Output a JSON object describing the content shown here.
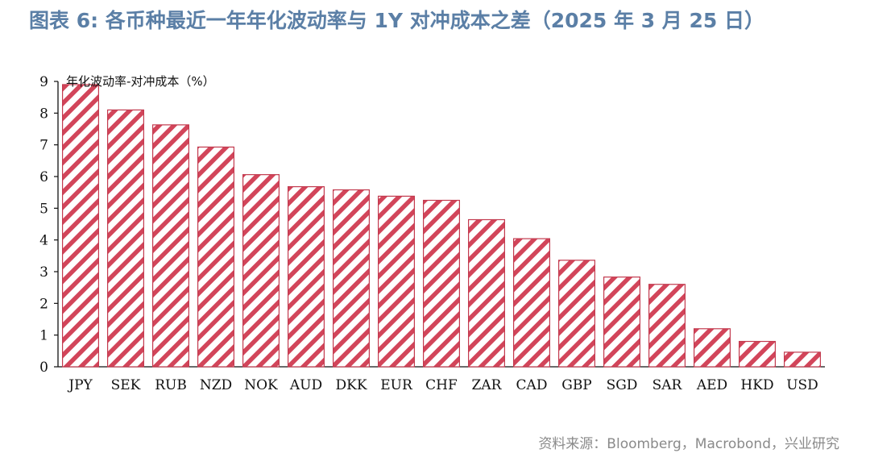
{
  "title": "图表 6: 各币种最近一年年化波动率与 1Y 对冲成本之差（2025 年 3 月 25 日）",
  "source": "资料来源：Bloomberg，Macrobond，兴业研究",
  "colors": {
    "bar_stripe": "#d2455a",
    "bar_border": "#c23a4e",
    "title": "#5b7fa6",
    "source": "#8a8a8a"
  },
  "chart_data": {
    "type": "bar",
    "title": "图表 6: 各币种最近一年年化波动率与 1Y 对冲成本之差（2025 年 3 月 25 日）",
    "ylabel": "年化波动率-对冲成本（%）",
    "xlabel": "",
    "ylim": [
      0,
      9
    ],
    "yticks": [
      "0",
      "1",
      "2",
      "3",
      "4",
      "5",
      "6",
      "7",
      "8",
      "9"
    ],
    "grid": false,
    "categories": [
      "JPY",
      "SEK",
      "RUB",
      "NZD",
      "NOK",
      "AUD",
      "DKK",
      "EUR",
      "CHF",
      "ZAR",
      "CAD",
      "GBP",
      "SGD",
      "SAR",
      "AED",
      "HKD",
      "USD"
    ],
    "values": [
      8.9,
      8.1,
      7.63,
      6.93,
      6.06,
      5.68,
      5.58,
      5.38,
      5.25,
      4.64,
      4.04,
      3.36,
      2.83,
      2.6,
      1.2,
      0.8,
      0.46
    ]
  }
}
